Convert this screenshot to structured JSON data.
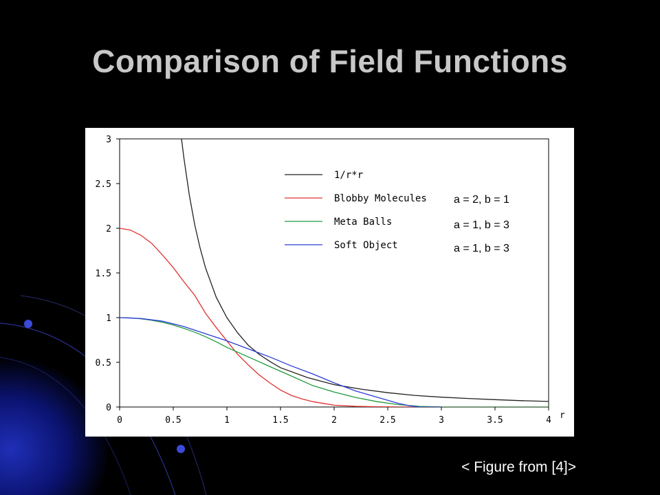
{
  "slide": {
    "title": "Comparison of Field Functions",
    "caption": "< Figure from [4]>"
  },
  "theme": {
    "background": "#000000",
    "accent_dark": "#0a0a5a",
    "accent_bright": "#1a1aa8",
    "title_color": "#c8c8c8"
  },
  "chart_data": {
    "type": "line",
    "title": "",
    "xlabel": "r",
    "ylabel": "",
    "xlim": [
      0,
      4
    ],
    "ylim": [
      0,
      3
    ],
    "xticks": [
      "0",
      "0.5",
      "1",
      "1.5",
      "2",
      "2.5",
      "3",
      "3.5",
      "4"
    ],
    "yticks": [
      "0",
      "0.5",
      "1",
      "1.5",
      "2",
      "2.5",
      "3"
    ],
    "grid": false,
    "legend_position": "top-right",
    "series": [
      {
        "name": "1/r*r",
        "note": "",
        "color": "#202020",
        "x": [
          0.577,
          0.6,
          0.65,
          0.7,
          0.75,
          0.8,
          0.9,
          1.0,
          1.1,
          1.2,
          1.3,
          1.4,
          1.5,
          1.75,
          2.0,
          2.25,
          2.5,
          2.75,
          3.0,
          3.25,
          3.5,
          3.75,
          4.0
        ],
        "y": [
          3.0,
          2.78,
          2.37,
          2.04,
          1.78,
          1.56,
          1.23,
          1.0,
          0.83,
          0.69,
          0.59,
          0.51,
          0.44,
          0.33,
          0.25,
          0.2,
          0.16,
          0.13,
          0.11,
          0.095,
          0.082,
          0.071,
          0.0625
        ]
      },
      {
        "name": "Blobby Molecules",
        "note": "a = 2, b = 1",
        "color": "#e03030",
        "x": [
          0,
          0.1,
          0.2,
          0.3,
          0.4,
          0.5,
          0.6,
          0.7,
          0.8,
          0.9,
          1.0,
          1.1,
          1.2,
          1.3,
          1.4,
          1.5,
          1.6,
          1.7,
          1.8,
          1.9,
          2.0,
          2.2,
          2.4,
          2.6,
          2.8,
          3.0,
          3.5,
          4.0
        ],
        "y": [
          2.0,
          1.98,
          1.92,
          1.83,
          1.7,
          1.56,
          1.4,
          1.25,
          1.05,
          0.89,
          0.74,
          0.59,
          0.47,
          0.36,
          0.27,
          0.19,
          0.13,
          0.09,
          0.06,
          0.04,
          0.02,
          0.008,
          0.003,
          0.001,
          0.0,
          0.0,
          0.0,
          0.0
        ]
      },
      {
        "name": "Meta Balls",
        "note": "a = 1, b = 3",
        "color": "#1f9a3a",
        "x": [
          0,
          0.1,
          0.2,
          0.3,
          0.4,
          0.5,
          0.6,
          0.7,
          0.8,
          0.9,
          1.0,
          1.2,
          1.4,
          1.6,
          1.8,
          2.0,
          2.2,
          2.4,
          2.6,
          2.8,
          3.0,
          3.5,
          4.0
        ],
        "y": [
          1.0,
          0.997,
          0.987,
          0.97,
          0.947,
          0.917,
          0.88,
          0.837,
          0.787,
          0.73,
          0.667,
          0.56,
          0.453,
          0.347,
          0.24,
          0.167,
          0.107,
          0.06,
          0.027,
          0.007,
          0.0,
          0.0,
          0.0
        ]
      },
      {
        "name": "Soft Object",
        "note": "a = 1, b = 3",
        "color": "#2a3ad8",
        "x": [
          0,
          0.2,
          0.4,
          0.6,
          0.8,
          1.0,
          1.2,
          1.4,
          1.6,
          1.8,
          2.0,
          2.2,
          2.4,
          2.6,
          2.7,
          2.8,
          3.0
        ],
        "y": [
          1.0,
          0.99,
          0.96,
          0.9,
          0.82,
          0.74,
          0.65,
          0.56,
          0.46,
          0.37,
          0.27,
          0.18,
          0.11,
          0.04,
          0.015,
          0.0,
          0.0
        ]
      }
    ]
  }
}
